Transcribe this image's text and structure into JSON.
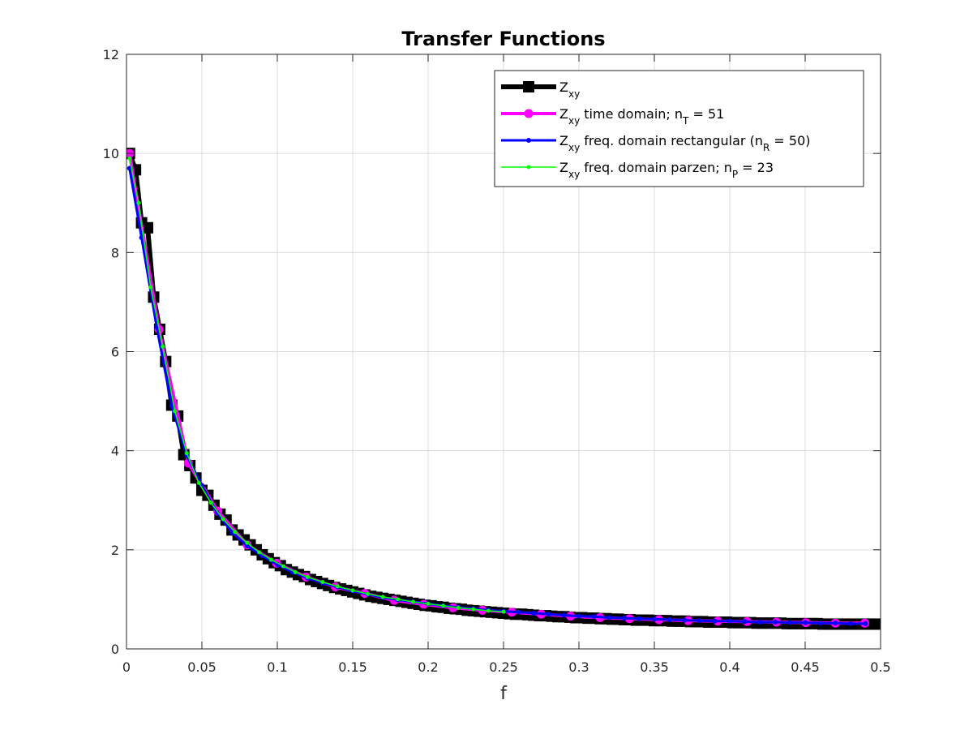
{
  "chart_data": {
    "type": "line",
    "title": "Transfer Functions",
    "xlabel": "f",
    "ylabel": "",
    "xlim": [
      0,
      0.5
    ],
    "ylim": [
      0,
      12
    ],
    "xticks": [
      0,
      0.05,
      0.1,
      0.15,
      0.2,
      0.25,
      0.3,
      0.35,
      0.4,
      0.45,
      0.5
    ],
    "xtick_labels": [
      "0",
      "0.05",
      "0.1",
      "0.15",
      "0.2",
      "0.25",
      "0.3",
      "0.35",
      "0.4",
      "0.45",
      "0.5"
    ],
    "yticks": [
      0,
      2,
      4,
      6,
      8,
      10,
      12
    ],
    "ytick_labels": [
      "0",
      "2",
      "4",
      "6",
      "8",
      "10",
      "12"
    ],
    "grid": true,
    "legend_position": "top-right",
    "series": [
      {
        "legend": {
          "main": "Z",
          "sub": "xy",
          "suffix": "",
          "sub2": "",
          "tail": ""
        },
        "color": "#000000",
        "marker": "square",
        "line_width": 6,
        "marker_size": 14,
        "x": [
          0.002,
          0.006,
          0.01,
          0.014,
          0.018,
          0.022,
          0.026,
          0.03,
          0.034,
          0.038,
          0.042,
          0.046,
          0.05,
          0.054,
          0.058,
          0.062,
          0.066,
          0.07,
          0.074,
          0.078,
          0.082,
          0.086,
          0.09,
          0.094,
          0.098,
          0.102,
          0.106,
          0.11,
          0.114,
          0.118,
          0.122,
          0.126,
          0.13,
          0.134,
          0.138,
          0.142,
          0.146,
          0.15,
          0.154,
          0.158,
          0.162,
          0.166,
          0.17,
          0.174,
          0.178,
          0.182,
          0.186,
          0.19,
          0.194,
          0.198,
          0.202,
          0.206,
          0.21,
          0.214,
          0.218,
          0.222,
          0.226,
          0.23,
          0.234,
          0.238,
          0.242,
          0.246,
          0.25,
          0.254,
          0.258,
          0.262,
          0.266,
          0.27,
          0.274,
          0.278,
          0.282,
          0.286,
          0.29,
          0.294,
          0.298,
          0.302,
          0.306,
          0.31,
          0.314,
          0.318,
          0.322,
          0.326,
          0.33,
          0.334,
          0.338,
          0.342,
          0.346,
          0.35,
          0.354,
          0.358,
          0.362,
          0.366,
          0.37,
          0.374,
          0.378,
          0.382,
          0.386,
          0.39,
          0.394,
          0.398,
          0.402,
          0.406,
          0.41,
          0.414,
          0.418,
          0.422,
          0.426,
          0.43,
          0.434,
          0.438,
          0.442,
          0.446,
          0.45,
          0.454,
          0.458,
          0.462,
          0.466,
          0.47,
          0.474,
          0.478,
          0.482,
          0.486,
          0.49,
          0.494,
          0.498
        ],
        "y": [
          10.0,
          9.67,
          8.6,
          8.5,
          7.1,
          6.45,
          5.8,
          4.92,
          4.7,
          3.92,
          3.7,
          3.45,
          3.2,
          3.1,
          2.9,
          2.72,
          2.6,
          2.4,
          2.3,
          2.2,
          2.1,
          2.0,
          1.9,
          1.82,
          1.74,
          1.68,
          1.6,
          1.55,
          1.5,
          1.46,
          1.4,
          1.36,
          1.32,
          1.28,
          1.24,
          1.21,
          1.18,
          1.15,
          1.12,
          1.09,
          1.06,
          1.04,
          1.02,
          1.0,
          0.98,
          0.96,
          0.94,
          0.92,
          0.9,
          0.88,
          0.87,
          0.85,
          0.84,
          0.82,
          0.81,
          0.8,
          0.78,
          0.77,
          0.76,
          0.75,
          0.74,
          0.73,
          0.72,
          0.71,
          0.7,
          0.7,
          0.69,
          0.68,
          0.67,
          0.67,
          0.66,
          0.65,
          0.65,
          0.64,
          0.63,
          0.63,
          0.62,
          0.62,
          0.61,
          0.61,
          0.6,
          0.6,
          0.59,
          0.59,
          0.58,
          0.58,
          0.58,
          0.57,
          0.57,
          0.57,
          0.56,
          0.56,
          0.56,
          0.55,
          0.55,
          0.55,
          0.54,
          0.54,
          0.54,
          0.54,
          0.53,
          0.53,
          0.53,
          0.53,
          0.52,
          0.52,
          0.52,
          0.52,
          0.52,
          0.51,
          0.51,
          0.51,
          0.51,
          0.51,
          0.51,
          0.5,
          0.5,
          0.5,
          0.5,
          0.5,
          0.5,
          0.5,
          0.5,
          0.5,
          0.5
        ]
      },
      {
        "legend": {
          "main": "Z",
          "sub": "xy",
          "suffix": " time domain; n",
          "sub2": "T",
          "tail": " = 51"
        },
        "color": "#ff00ff",
        "marker": "circle",
        "line_width": 4,
        "marker_size": 11,
        "x": [
          0.002,
          0.0215,
          0.041,
          0.0605,
          0.08,
          0.0995,
          0.119,
          0.1385,
          0.158,
          0.1775,
          0.197,
          0.2165,
          0.236,
          0.2555,
          0.275,
          0.2945,
          0.314,
          0.3335,
          0.353,
          0.3725,
          0.392,
          0.4115,
          0.431,
          0.4505,
          0.47,
          0.4895
        ],
        "y": [
          10.0,
          6.45,
          3.75,
          2.78,
          2.1,
          1.73,
          1.45,
          1.25,
          1.12,
          0.98,
          0.9,
          0.83,
          0.78,
          0.74,
          0.7,
          0.66,
          0.63,
          0.61,
          0.59,
          0.57,
          0.56,
          0.55,
          0.54,
          0.53,
          0.52,
          0.52
        ]
      },
      {
        "legend": {
          "main": "Z",
          "sub": "xy",
          "suffix": " freq. domain rectangular (n",
          "sub2": "R",
          "tail": " = 50)"
        },
        "color": "#0000ff",
        "marker": "point",
        "line_width": 3,
        "marker_size": 3,
        "x": [
          0.002,
          0.01,
          0.02,
          0.03,
          0.04,
          0.05,
          0.06,
          0.07,
          0.08,
          0.09,
          0.1,
          0.11,
          0.12,
          0.13,
          0.14,
          0.15,
          0.16,
          0.17,
          0.18,
          0.19,
          0.2,
          0.21,
          0.22,
          0.23,
          0.24,
          0.25,
          0.26,
          0.27,
          0.28,
          0.29,
          0.3,
          0.31,
          0.32,
          0.33,
          0.34,
          0.35,
          0.36,
          0.37,
          0.38,
          0.39,
          0.4,
          0.41,
          0.42,
          0.43,
          0.44,
          0.45,
          0.46,
          0.47,
          0.48,
          0.49
        ],
        "y": [
          9.7,
          8.3,
          6.5,
          4.9,
          3.9,
          3.3,
          2.75,
          2.35,
          2.08,
          1.88,
          1.7,
          1.55,
          1.43,
          1.33,
          1.25,
          1.17,
          1.1,
          1.04,
          0.99,
          0.95,
          0.91,
          0.87,
          0.84,
          0.81,
          0.78,
          0.76,
          0.74,
          0.72,
          0.7,
          0.68,
          0.66,
          0.65,
          0.63,
          0.62,
          0.61,
          0.6,
          0.59,
          0.58,
          0.57,
          0.56,
          0.56,
          0.55,
          0.54,
          0.54,
          0.53,
          0.53,
          0.52,
          0.52,
          0.51,
          0.51
        ]
      },
      {
        "legend": {
          "main": "Z",
          "sub": "xy",
          "suffix": " freq. domain parzen; n",
          "sub2": "P",
          "tail": " = 23"
        },
        "color": "#00ff00",
        "marker": "point",
        "line_width": 1.5,
        "marker_size": 2.5,
        "x": [
          0.002,
          0.008,
          0.016,
          0.024,
          0.032,
          0.04,
          0.048,
          0.056,
          0.064,
          0.072,
          0.08,
          0.088,
          0.096,
          0.104,
          0.112,
          0.12,
          0.13,
          0.14,
          0.15,
          0.16,
          0.17,
          0.18,
          0.19,
          0.2,
          0.21,
          0.22,
          0.23,
          0.24,
          0.25
        ],
        "y": [
          9.9,
          9.0,
          7.3,
          6.1,
          4.8,
          3.95,
          3.35,
          2.95,
          2.62,
          2.36,
          2.14,
          1.95,
          1.8,
          1.67,
          1.55,
          1.45,
          1.35,
          1.26,
          1.18,
          1.11,
          1.05,
          1.0,
          0.95,
          0.91,
          0.87,
          0.83,
          0.8,
          0.77,
          0.75
        ]
      }
    ]
  }
}
